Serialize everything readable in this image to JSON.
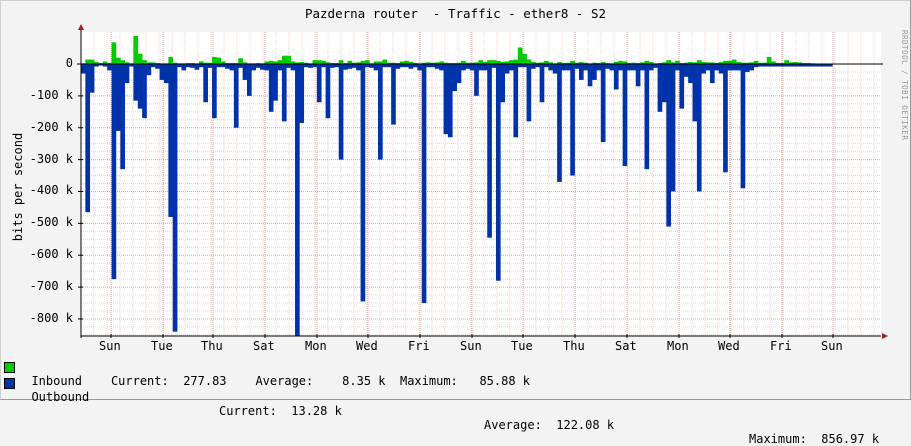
{
  "title": "Pazderna router  - Traffic - ether8 - S2",
  "watermark": "RRDTOOL / TOBI OETIKER",
  "chart_data": {
    "type": "bar",
    "title": "Pazderna router  - Traffic - ether8 - S2",
    "xlabel": "",
    "ylabel": "bits per second",
    "ylim": [
      -860000,
      90000
    ],
    "y_ticks": [
      "0",
      "-100 k",
      "-200 k",
      "-300 k",
      "-400 k",
      "-500 k",
      "-600 k",
      "-700 k",
      "-800 k"
    ],
    "x_ticks": [
      "Sun",
      "Tue",
      "Thu",
      "Sat",
      "Mon",
      "Wed",
      "Fri",
      "Sun",
      "Tue",
      "Thu",
      "Sat",
      "Mon",
      "Wed",
      "Fri",
      "Sun"
    ],
    "grid": true,
    "series": [
      {
        "name": "Inbound",
        "color": "#00cc00",
        "direction": "up",
        "values_k": [
          2,
          14,
          14,
          6,
          3,
          8,
          3,
          68,
          20,
          12,
          5,
          2,
          88,
          32,
          12,
          5,
          5,
          3,
          2,
          2,
          22,
          4,
          2,
          2,
          3,
          3,
          2,
          8,
          4,
          4,
          22,
          20,
          8,
          3,
          3,
          3,
          18,
          5,
          2,
          2,
          3,
          2,
          8,
          10,
          8,
          12,
          26,
          26,
          8,
          5,
          6,
          4,
          2,
          12,
          12,
          10,
          5,
          3,
          3,
          12,
          3,
          10,
          4,
          5,
          10,
          12,
          2,
          8,
          8,
          14,
          4,
          4,
          3,
          8,
          10,
          7,
          3,
          2,
          4,
          5,
          4,
          5,
          8,
          4,
          3,
          3,
          4,
          10,
          4,
          4,
          5,
          12,
          6,
          12,
          12,
          10,
          6,
          8,
          12,
          14,
          52,
          32,
          14,
          6,
          4,
          5,
          10,
          5,
          2,
          6,
          3,
          4,
          10,
          4,
          6,
          4,
          2,
          4,
          3,
          6,
          3,
          2,
          7,
          10,
          8,
          3,
          4,
          3,
          5,
          10,
          6,
          2,
          3,
          5,
          12,
          5,
          10,
          3,
          4,
          6,
          5,
          12,
          6,
          5,
          5,
          3,
          6,
          10,
          10,
          14,
          6,
          4,
          4,
          5,
          10,
          4,
          4,
          22,
          8,
          3,
          3,
          12,
          5,
          6,
          5,
          3,
          3,
          2,
          1,
          1,
          1,
          1,
          1,
          1,
          1,
          1,
          1,
          1,
          1,
          1,
          1,
          1
        ]
      },
      {
        "name": "Outbound",
        "color": "#0033aa",
        "direction": "down",
        "values_k": [
          30,
          465,
          90,
          8,
          5,
          8,
          20,
          675,
          210,
          330,
          60,
          8,
          115,
          140,
          170,
          35,
          10,
          15,
          50,
          60,
          480,
          840,
          10,
          20,
          10,
          12,
          18,
          10,
          120,
          12,
          170,
          10,
          10,
          15,
          20,
          200,
          12,
          50,
          100,
          20,
          12,
          18,
          20,
          150,
          115,
          20,
          180,
          12,
          20,
          855,
          185,
          10,
          12,
          10,
          120,
          10,
          170,
          12,
          10,
          300,
          18,
          15,
          12,
          20,
          745,
          10,
          12,
          20,
          300,
          10,
          10,
          190,
          15,
          10,
          10,
          15,
          10,
          20,
          750,
          10,
          10,
          15,
          20,
          220,
          230,
          85,
          60,
          20,
          15,
          20,
          100,
          20,
          20,
          545,
          12,
          680,
          120,
          30,
          20,
          230,
          10,
          10,
          180,
          15,
          10,
          120,
          10,
          20,
          30,
          370,
          20,
          20,
          350,
          15,
          50,
          20,
          70,
          50,
          20,
          245,
          15,
          20,
          80,
          20,
          320,
          20,
          20,
          70,
          20,
          330,
          20,
          12,
          150,
          120,
          510,
          400,
          20,
          140,
          40,
          60,
          180,
          400,
          30,
          20,
          60,
          20,
          30,
          340,
          20,
          20,
          20,
          390,
          25,
          20,
          10,
          8,
          8,
          8,
          8,
          8,
          8,
          8,
          8,
          8,
          8,
          8,
          8,
          8,
          8,
          8,
          8,
          8
        ]
      }
    ]
  },
  "legend": {
    "inbound": {
      "label": "Inbound",
      "current_label": "Current:",
      "current": "277.83",
      "average_label": "Average:",
      "average": "8.35 k",
      "maximum_label": "Maximum:",
      "maximum": "85.88 k",
      "color": "#00cc00"
    },
    "outbound": {
      "label": "Outbound",
      "current_label": "Current:",
      "current": "13.28 k",
      "average_label": "Average:",
      "average": "122.08 k",
      "maximum_label": "Maximum:",
      "maximum": "856.97 k",
      "color": "#0033aa"
    }
  }
}
